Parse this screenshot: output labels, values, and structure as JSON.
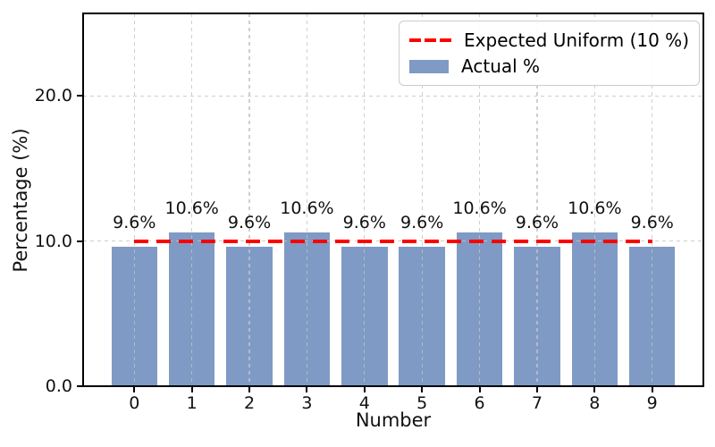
{
  "chart_data": {
    "type": "bar",
    "title": "",
    "xlabel": "Number",
    "ylabel": "Percentage (%)",
    "categories": [
      "0",
      "1",
      "2",
      "3",
      "4",
      "5",
      "6",
      "7",
      "8",
      "9"
    ],
    "series": [
      {
        "name": "Actual %",
        "values": [
          9.6,
          10.6,
          9.6,
          10.6,
          9.6,
          9.6,
          10.6,
          9.6,
          10.6,
          9.6
        ],
        "labels": [
          "9.6%",
          "10.6%",
          "9.6%",
          "10.6%",
          "9.6%",
          "9.6%",
          "10.6%",
          "9.6%",
          "10.6%",
          "9.6%"
        ],
        "color": "#7f9ac5"
      }
    ],
    "reference_line": {
      "name": "Expected Uniform (10 %)",
      "value": 10,
      "x_start": 0,
      "x_end": 9,
      "color": "#ff0000",
      "style": "dashed"
    },
    "ytick_labels": [
      "0.0",
      "10.0",
      "20.0"
    ],
    "ytick_values": [
      0,
      10,
      20
    ],
    "ylim": [
      0,
      25.7
    ],
    "xlim": [
      -0.89,
      9.89
    ],
    "bar_width": 0.8,
    "grid": true,
    "legend_position": "upper right"
  },
  "legend": {
    "entries": [
      {
        "label": "Expected Uniform (10 %)",
        "swatch": "dashed-line"
      },
      {
        "label": "Actual %",
        "swatch": "filled-rect"
      }
    ]
  },
  "colors": {
    "bar": "#7f9ac5",
    "reference": "#ff0000",
    "grid": "#c3c3c3",
    "spine": "#000000",
    "text": "#111111",
    "legend_border": "#cccccc"
  }
}
